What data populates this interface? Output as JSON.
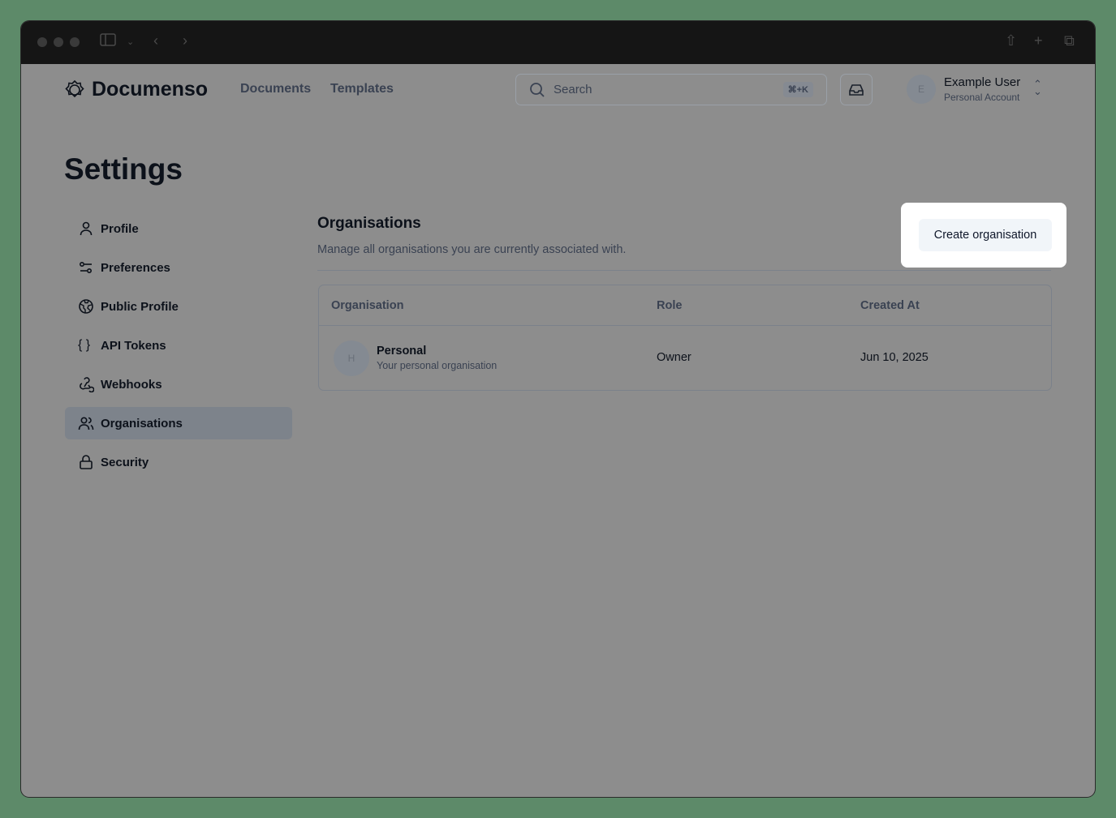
{
  "app": {
    "name": "Documenso"
  },
  "nav": {
    "documents": "Documents",
    "templates": "Templates"
  },
  "search": {
    "placeholder": "Search",
    "shortcut": "⌘+K"
  },
  "user": {
    "initial": "E",
    "name": "Example User",
    "account": "Personal Account"
  },
  "page": {
    "title": "Settings"
  },
  "sidebar": {
    "items": [
      {
        "label": "Profile",
        "icon": "user-icon"
      },
      {
        "label": "Preferences",
        "icon": "sliders-icon"
      },
      {
        "label": "Public Profile",
        "icon": "globe-icon"
      },
      {
        "label": "API Tokens",
        "icon": "braces-icon"
      },
      {
        "label": "Webhooks",
        "icon": "webhook-icon"
      },
      {
        "label": "Organisations",
        "icon": "users-icon",
        "active": true
      },
      {
        "label": "Security",
        "icon": "lock-icon"
      }
    ]
  },
  "section": {
    "title": "Organisations",
    "description": "Manage all organisations you are currently associated with.",
    "create_button": "Create organisation"
  },
  "table": {
    "headers": [
      "Organisation",
      "Role",
      "Created At"
    ],
    "rows": [
      {
        "initial": "H",
        "name": "Personal",
        "subtitle": "Your personal organisation",
        "role": "Owner",
        "created": "Jun 10, 2025"
      }
    ]
  }
}
